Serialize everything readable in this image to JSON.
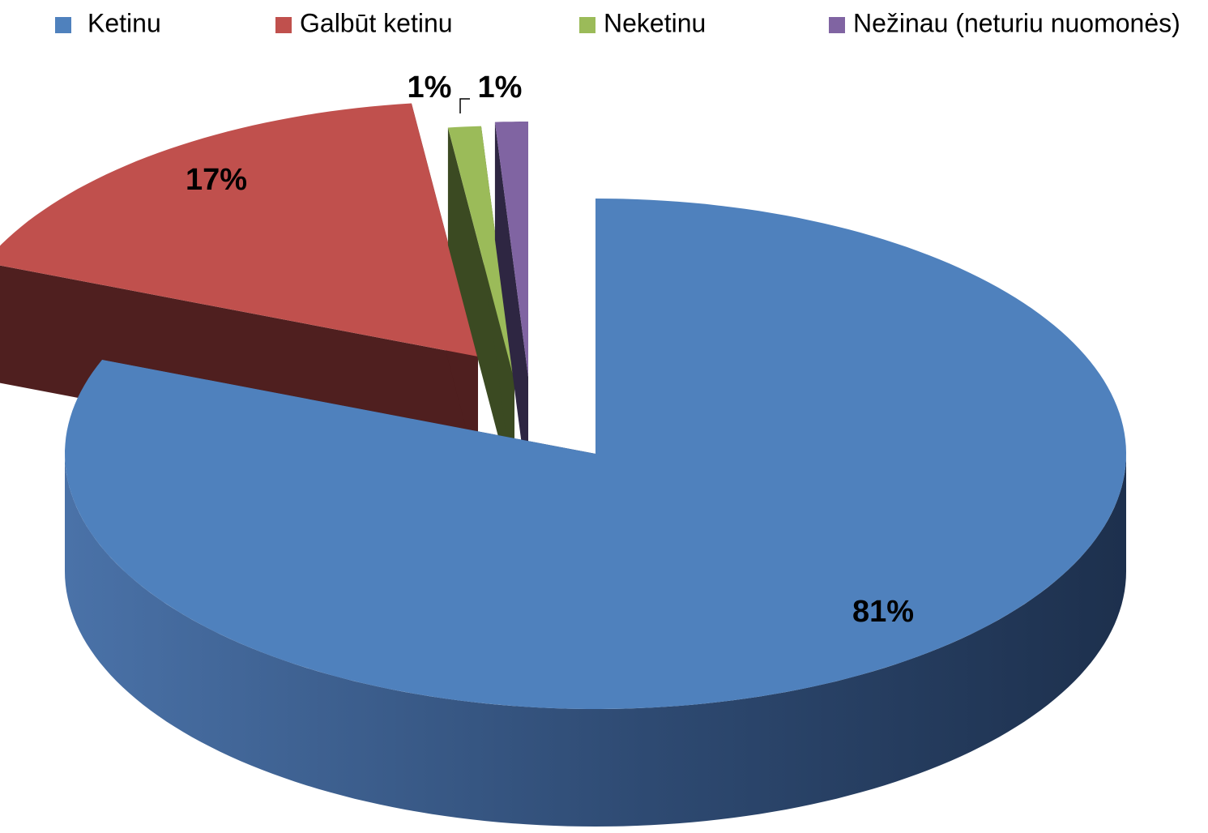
{
  "chart_data": {
    "type": "pie3d",
    "categories": [
      "Ketinu",
      "Galbūt ketinu",
      "Neketinu",
      "Nežinau (neturiu nuomonės)"
    ],
    "values": [
      81,
      17,
      1,
      1
    ],
    "value_labels": [
      "81%",
      "17%",
      "1%",
      "1%"
    ],
    "colors": [
      "#4f81bd",
      "#c0504d",
      "#9bbb59",
      "#8064a2"
    ],
    "legend": "top"
  }
}
